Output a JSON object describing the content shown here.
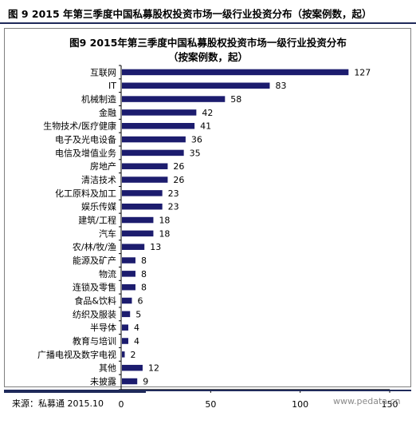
{
  "header": {
    "title": "图 9 2015 年第三季度中国私募股权投资市场一级行业投资分布（按案例数，起）"
  },
  "chart_data": {
    "type": "bar",
    "orientation": "horizontal",
    "title": "图9 2015年第三季度中国私募股权投资市场一级行业投资分布",
    "subtitle": "（按案例数，起）",
    "categories": [
      "互联网",
      "IT",
      "机械制造",
      "金融",
      "生物技术/医疗健康",
      "电子及光电设备",
      "电信及增值业务",
      "房地产",
      "清洁技术",
      "化工原料及加工",
      "娱乐传媒",
      "建筑/工程",
      "汽车",
      "农/林/牧/渔",
      "能源及矿产",
      "物流",
      "连锁及零售",
      "食品&饮料",
      "纺织及服装",
      "半导体",
      "教育与培训",
      "广播电视及数字电视",
      "其他",
      "未披露"
    ],
    "values": [
      127,
      83,
      58,
      42,
      41,
      36,
      35,
      26,
      26,
      23,
      23,
      18,
      18,
      13,
      8,
      8,
      8,
      6,
      5,
      4,
      4,
      2,
      12,
      9
    ],
    "xlim": [
      0,
      150
    ],
    "xticks": [
      0,
      50,
      100,
      150
    ],
    "xlabel": "",
    "ylabel": "",
    "bar_color": "#1c1c6e",
    "legend": "none",
    "grid": false
  },
  "footer": {
    "source": "来源：私募通 2015.10",
    "watermark": "www.pedata.cn"
  }
}
